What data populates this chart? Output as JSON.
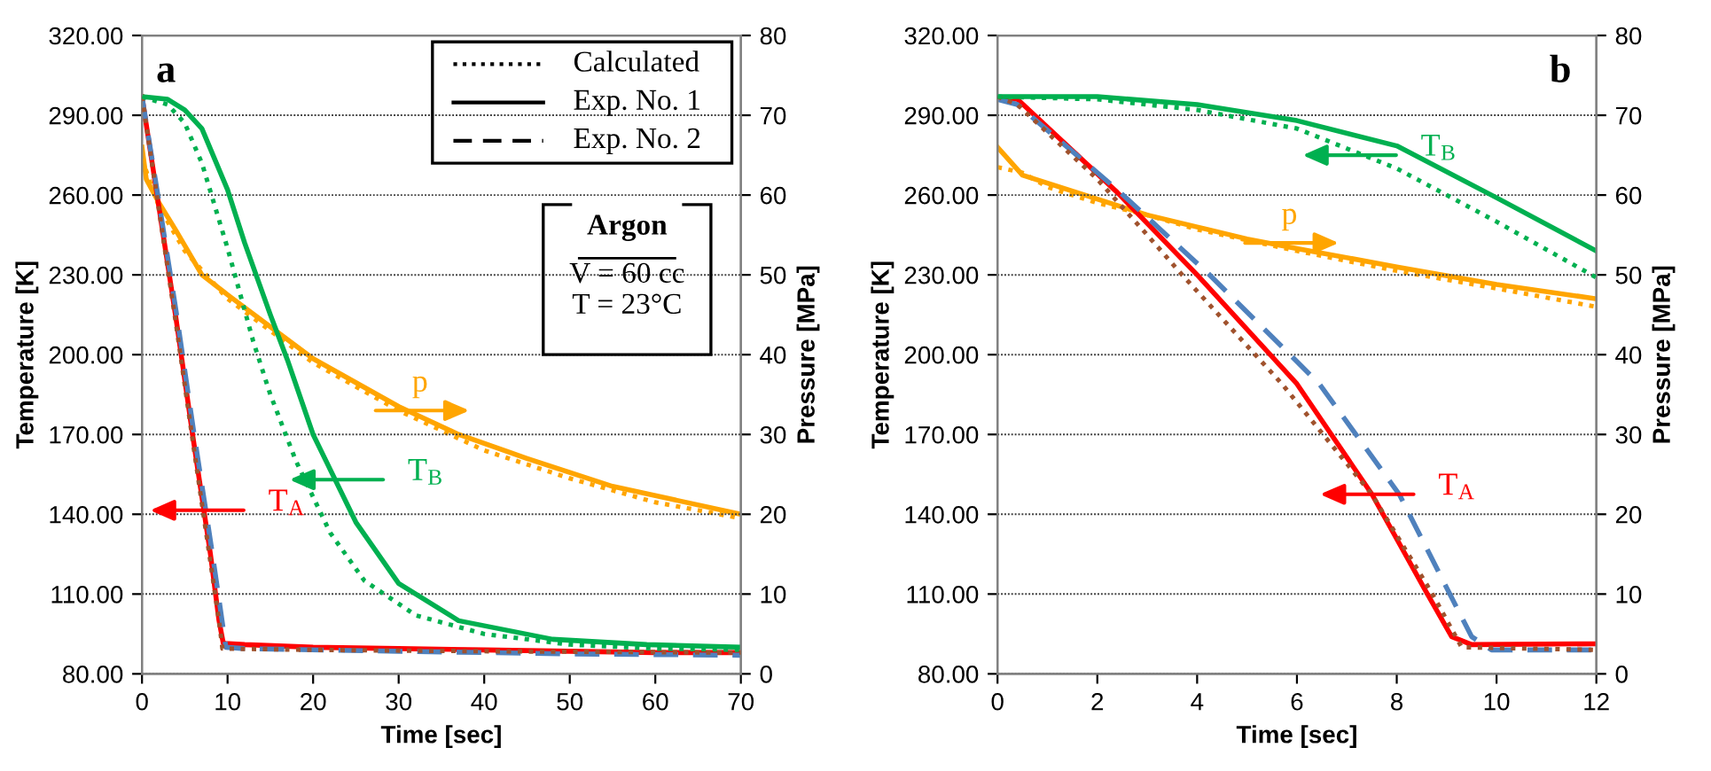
{
  "chart_data": [
    {
      "type": "line",
      "title": "a",
      "xlabel": "Time [sec]",
      "ylabel": "Temperature [K]",
      "y2label": "Pressure [MPa]",
      "xlim": [
        0,
        70
      ],
      "xticks": [
        0,
        10,
        20,
        30,
        40,
        50,
        60,
        70
      ],
      "ylim": [
        80,
        320
      ],
      "yticks": [
        {
          "value": 80,
          "label": "80.00"
        },
        {
          "value": 110,
          "label": "110.00"
        },
        {
          "value": 140,
          "label": "140.00"
        },
        {
          "value": 170,
          "label": "170.00"
        },
        {
          "value": 200,
          "label": "200.00"
        },
        {
          "value": 230,
          "label": "230.00"
        },
        {
          "value": 260,
          "label": "260.00"
        },
        {
          "value": 290,
          "label": "290.00"
        },
        {
          "value": 320,
          "label": "320.00"
        }
      ],
      "y2lim": [
        0,
        80
      ],
      "y2ticks": [
        0,
        10,
        20,
        30,
        40,
        50,
        60,
        70,
        80
      ],
      "grid": "y",
      "annotations": [
        "Calculated",
        "Exp. No. 1",
        "Exp. No. 2",
        "Argon",
        "V = 60 cc",
        "T = 23°C",
        {
          "text": "T$_{A}$",
          "x": 6.7,
          "y": 141.5
        },
        {
          "text": "T$_{B}$",
          "x": 23,
          "y": 153
        },
        {
          "text": "p",
          "x": 32.5,
          "y": 179
        }
      ],
      "series": [
        {
          "color": "#a0522d",
          "line_style": "dotted",
          "x": [
            0,
            2,
            4,
            6,
            8,
            9,
            9.4,
            20,
            40,
            70
          ],
          "values": [
            297,
            254,
            211,
            166,
            122,
            100,
            89.5,
            89,
            88.5,
            88
          ]
        },
        {
          "color": "#ff0000",
          "line_style": "solid",
          "x": [
            0,
            2,
            4,
            6,
            8,
            9,
            9.5,
            12,
            20,
            30,
            40,
            50,
            60,
            70
          ],
          "values": [
            297,
            255,
            213,
            168,
            125,
            100,
            91.5,
            91,
            90,
            89.5,
            89,
            88.5,
            88,
            88
          ]
        },
        {
          "color": "#4f81bd",
          "line_style": "dashed",
          "x": [
            0,
            2,
            4,
            6,
            8,
            9,
            9.8,
            12,
            30,
            50,
            70
          ],
          "values": [
            297,
            257,
            216,
            172,
            130,
            108,
            90,
            89.5,
            88.5,
            87.5,
            87
          ]
        },
        {
          "color": "#00b050",
          "line_style": "dotted",
          "x": [
            0,
            3,
            5,
            7,
            10,
            13,
            15,
            18,
            22,
            26,
            32,
            40,
            50,
            60,
            70
          ],
          "values": [
            297,
            294,
            287,
            272,
            240,
            205,
            185,
            160,
            133,
            115,
            102,
            95,
            91,
            89.5,
            89
          ]
        },
        {
          "color": "#00b050",
          "line_style": "solid",
          "x": [
            0,
            3,
            5,
            7,
            10,
            12,
            15,
            17,
            20,
            25,
            30,
            37,
            48,
            59,
            70
          ],
          "values": [
            297,
            296,
            292,
            285,
            262,
            242,
            215,
            198,
            170,
            137,
            114,
            100,
            93,
            91,
            90
          ]
        },
        {
          "color": "#ffa500",
          "line_style": "dotted",
          "axis": "y2",
          "x": [
            0,
            2,
            5,
            10,
            20,
            30,
            40,
            50,
            60,
            70
          ],
          "values": [
            64.5,
            58.5,
            53,
            47,
            39,
            33,
            28,
            24.5,
            21.5,
            19.5
          ]
        },
        {
          "color": "#ffa500",
          "line_style": "solid",
          "axis": "y2",
          "x": [
            0,
            0.5,
            2,
            4,
            7,
            10,
            15,
            20,
            30,
            37,
            45,
            55,
            70
          ],
          "values": [
            66,
            62,
            59,
            55.5,
            50,
            47.5,
            43.5,
            39.5,
            33.5,
            30,
            27,
            23.5,
            20
          ]
        }
      ]
    },
    {
      "type": "line",
      "title": "b",
      "xlabel": "Time [sec]",
      "ylabel": "Temperature [K]",
      "y2label": "Pressure [MPa]",
      "xlim": [
        0,
        12
      ],
      "xticks": [
        0,
        2,
        4,
        6,
        8,
        10,
        12
      ],
      "ylim": [
        80,
        320
      ],
      "yticks": [
        {
          "value": 80,
          "label": "80.00"
        },
        {
          "value": 110,
          "label": "110.00"
        },
        {
          "value": 140,
          "label": "140.00"
        },
        {
          "value": 170,
          "label": "170.00"
        },
        {
          "value": 200,
          "label": "200.00"
        },
        {
          "value": 230,
          "label": "230.00"
        },
        {
          "value": 260,
          "label": "260.00"
        },
        {
          "value": 290,
          "label": "290.00"
        },
        {
          "value": 320,
          "label": "320.00"
        }
      ],
      "y2lim": [
        0,
        80
      ],
      "y2ticks": [
        0,
        10,
        20,
        30,
        40,
        50,
        60,
        70,
        80
      ],
      "grid": "y",
      "annotations": [
        {
          "text": "T$_{A}$",
          "x": 7.45,
          "y": 147.5
        },
        {
          "text": "T$_{B}$",
          "x": 7.1,
          "y": 275
        },
        {
          "text": "p",
          "x": 5.85,
          "y": 242
        }
      ],
      "series": [
        {
          "color": "#a0522d",
          "line_style": "dotted",
          "x": [
            0,
            0.4,
            2,
            3,
            3.7,
            5.7,
            7.5,
            8.7,
            9.3,
            12
          ],
          "values": [
            297,
            294,
            266,
            245,
            230,
            189,
            147.5,
            110.5,
            90,
            89
          ]
        },
        {
          "color": "#ff0000",
          "line_style": "solid",
          "x": [
            0,
            0.4,
            2.4,
            4,
            6,
            7.5,
            8.6,
            9.1,
            9.5,
            12
          ],
          "values": [
            296.5,
            296,
            261,
            230,
            189,
            147.6,
            110.5,
            94,
            91,
            91.3
          ]
        },
        {
          "color": "#4f81bd",
          "line_style": "dashed",
          "x": [
            0,
            0.4,
            2.4,
            4.25,
            6.45,
            8.05,
            9.05,
            9.5,
            9.9,
            12
          ],
          "values": [
            296,
            294,
            262,
            230,
            189,
            147.5,
            110.5,
            94,
            89,
            89
          ]
        },
        {
          "color": "#00b050",
          "line_style": "dotted",
          "x": [
            0,
            2,
            4,
            6,
            8,
            10,
            12
          ],
          "values": [
            297,
            296,
            292,
            285,
            270,
            250,
            229
          ]
        },
        {
          "color": "#00b050",
          "line_style": "solid",
          "x": [
            0,
            2,
            4,
            6,
            8,
            10,
            12
          ],
          "values": [
            297,
            297,
            294,
            288,
            278.5,
            259,
            239
          ]
        },
        {
          "color": "#ffa500",
          "line_style": "dotted",
          "axis": "y2",
          "x": [
            0,
            0.5,
            1,
            2,
            3,
            4,
            6,
            8,
            10,
            12
          ],
          "values": [
            63.5,
            62.8,
            61,
            59,
            57.5,
            55.7,
            53,
            50.5,
            48.3,
            46
          ]
        },
        {
          "color": "#ffa500",
          "line_style": "solid",
          "axis": "y2",
          "x": [
            0,
            0.5,
            1,
            2,
            3,
            4,
            5,
            6,
            8,
            10,
            12
          ],
          "values": [
            66,
            62.5,
            61.5,
            59.5,
            57.5,
            56,
            54.5,
            53.3,
            51,
            48.8,
            47
          ]
        }
      ]
    }
  ]
}
